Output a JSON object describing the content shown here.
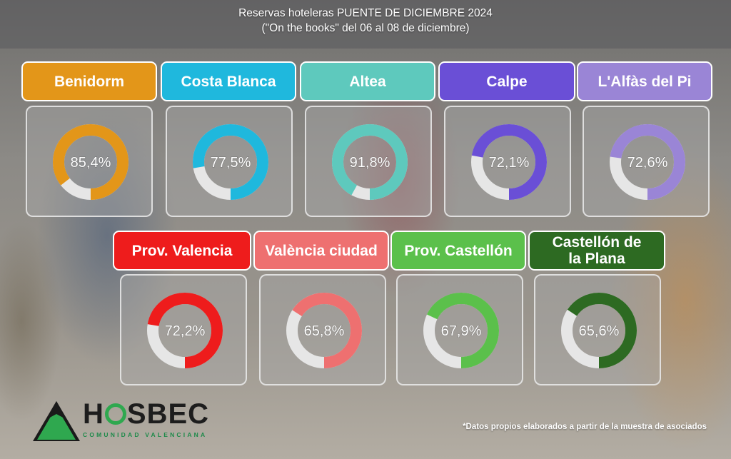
{
  "title": {
    "line1_prefix": "Reservas hoteleras ",
    "line1_bold": "PUENTE DE DICIEMBRE 2024",
    "line2": "(\"On the books\" del 06 al 08 de diciembre)"
  },
  "footnote": "*Datos propios elaborados a partir de la muestra de asociados",
  "logo": {
    "word_before": "H",
    "word_after": "SBEC",
    "subtitle": "COMUNIDAD VALENCIANA"
  },
  "chart_data": {
    "type": "pie",
    "categories": [
      "Benidorm",
      "Costa Blanca",
      "Altea",
      "Calpe",
      "L'Alfàs del Pi",
      "Prov. Valencia",
      "València ciudad",
      "Prov. Castellón",
      "Castellón de la Plana"
    ],
    "values": [
      85.4,
      77.5,
      91.8,
      72.1,
      72.6,
      72.2,
      65.8,
      67.9,
      65.6
    ],
    "labels": [
      "85,4%",
      "77,5%",
      "91,8%",
      "72,1%",
      "72,6%",
      "72,2%",
      "65,8%",
      "67,9%",
      "65,6%"
    ],
    "colors": [
      "#e39619",
      "#1fb8dd",
      "#5ec9bd",
      "#6a4fd6",
      "#9a85d6",
      "#ee1c1c",
      "#ee7070",
      "#5bc04b",
      "#2d6a22"
    ],
    "remainder_color": "#e6e6e6"
  }
}
